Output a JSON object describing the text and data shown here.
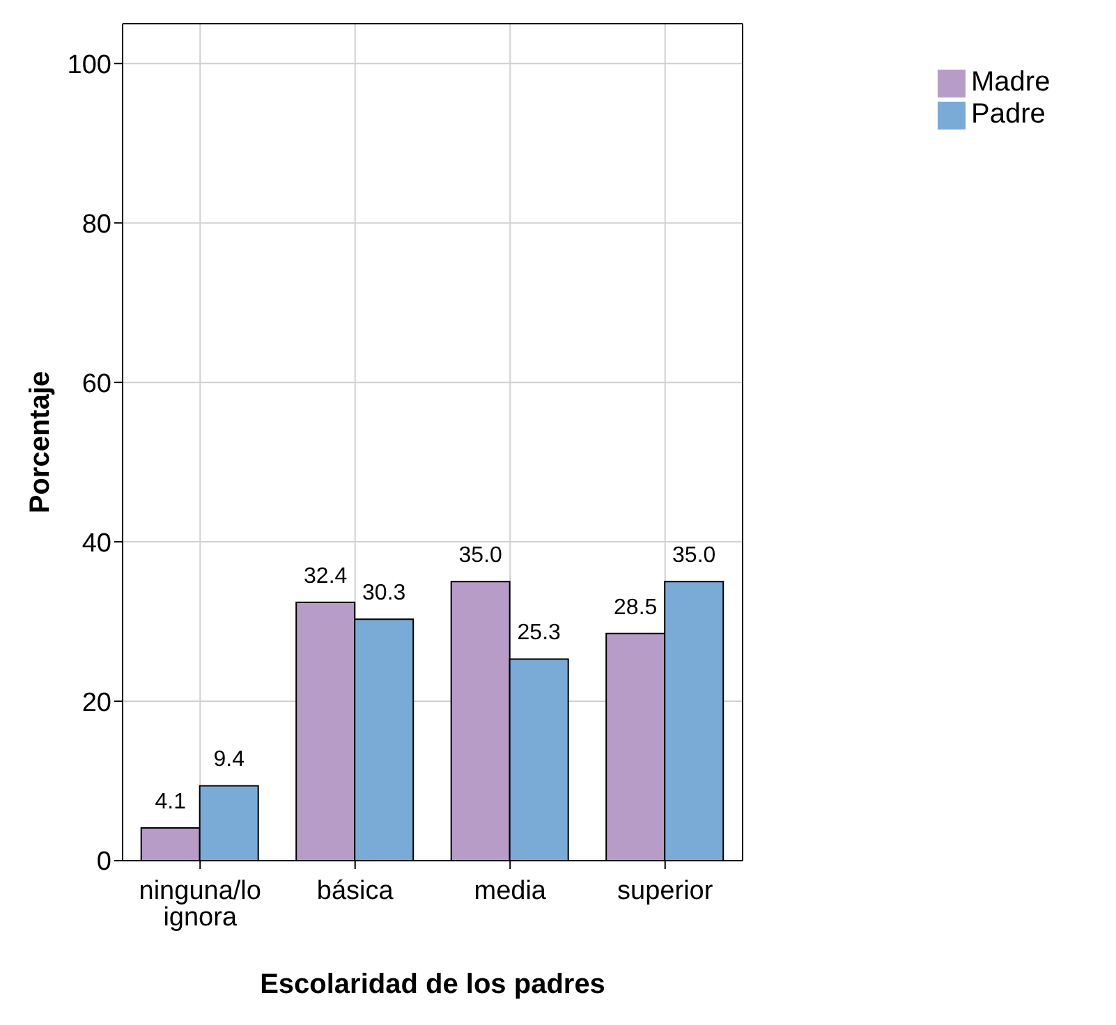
{
  "chart_data": {
    "type": "bar",
    "xlabel": "Escolaridad de los padres",
    "ylabel": "Porcentaje",
    "categories": [
      "ninguna/lo ignora",
      "básica",
      "media",
      "superior"
    ],
    "series": [
      {
        "name": "Madre",
        "color": "#b89cc8",
        "values": [
          4.1,
          32.4,
          35.0,
          28.5
        ],
        "value_labels": [
          "4.1",
          "32.4",
          "35.0",
          "28.5"
        ]
      },
      {
        "name": "Padre",
        "color": "#7aaad6",
        "values": [
          9.4,
          30.3,
          25.3,
          35.0
        ],
        "value_labels": [
          "9.4",
          "30.3",
          "25.3",
          "35.0"
        ]
      }
    ],
    "ylim": [
      0,
      105
    ],
    "yticks": [
      0,
      20,
      40,
      60,
      80,
      100
    ],
    "grid": true,
    "legend": "top right"
  }
}
